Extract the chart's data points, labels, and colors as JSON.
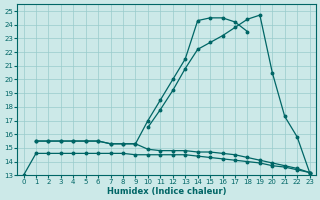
{
  "xlabel": "Humidex (Indice chaleur)",
  "xlim": [
    -0.5,
    23.5
  ],
  "ylim": [
    13,
    25.5
  ],
  "yticks": [
    13,
    14,
    15,
    16,
    17,
    18,
    19,
    20,
    21,
    22,
    23,
    24,
    25
  ],
  "xticks": [
    0,
    1,
    2,
    3,
    4,
    5,
    6,
    7,
    8,
    9,
    10,
    11,
    12,
    13,
    14,
    15,
    16,
    17,
    18,
    19,
    20,
    21,
    22,
    23
  ],
  "bg_color": "#cce9e8",
  "line_color": "#006666",
  "grid_color": "#99cccc",
  "line1_x": [
    0,
    1,
    2,
    3,
    4,
    5,
    6,
    7,
    8,
    9,
    10,
    11,
    12,
    13,
    14,
    15,
    16,
    17,
    18,
    19,
    20,
    21,
    22,
    23
  ],
  "line1_y": [
    13.0,
    14.6,
    14.6,
    14.6,
    14.6,
    14.6,
    14.6,
    14.6,
    14.6,
    14.5,
    14.5,
    14.5,
    14.5,
    14.5,
    14.4,
    14.3,
    14.2,
    14.1,
    14.0,
    13.9,
    13.7,
    13.6,
    13.4,
    13.2
  ],
  "line2_x": [
    1,
    2,
    3,
    4,
    5,
    6,
    7,
    8,
    9,
    10,
    11,
    12,
    13,
    14,
    15,
    16,
    17,
    18,
    19,
    20,
    21,
    22,
    23
  ],
  "line2_y": [
    15.5,
    15.5,
    15.5,
    15.5,
    15.5,
    15.5,
    15.3,
    15.3,
    15.3,
    14.9,
    14.8,
    14.8,
    14.8,
    14.7,
    14.7,
    14.6,
    14.5,
    14.3,
    14.1,
    13.9,
    13.7,
    13.5,
    13.2
  ],
  "line3_x": [
    1,
    2,
    3,
    4,
    5,
    6,
    7,
    8,
    9,
    10,
    11,
    12,
    13,
    14,
    15,
    16,
    17,
    18
  ],
  "line3_y": [
    15.5,
    15.5,
    15.5,
    15.5,
    15.5,
    15.5,
    15.3,
    15.3,
    15.3,
    17.0,
    18.5,
    20.0,
    21.5,
    24.3,
    24.5,
    24.5,
    24.2,
    23.5
  ],
  "line4_x": [
    10,
    11,
    12,
    13,
    14,
    15,
    16,
    17,
    18,
    19,
    20,
    21,
    22,
    23
  ],
  "line4_y": [
    16.5,
    17.8,
    19.2,
    20.8,
    22.2,
    22.7,
    23.2,
    23.8,
    24.4,
    24.7,
    20.5,
    17.3,
    15.8,
    13.2
  ]
}
